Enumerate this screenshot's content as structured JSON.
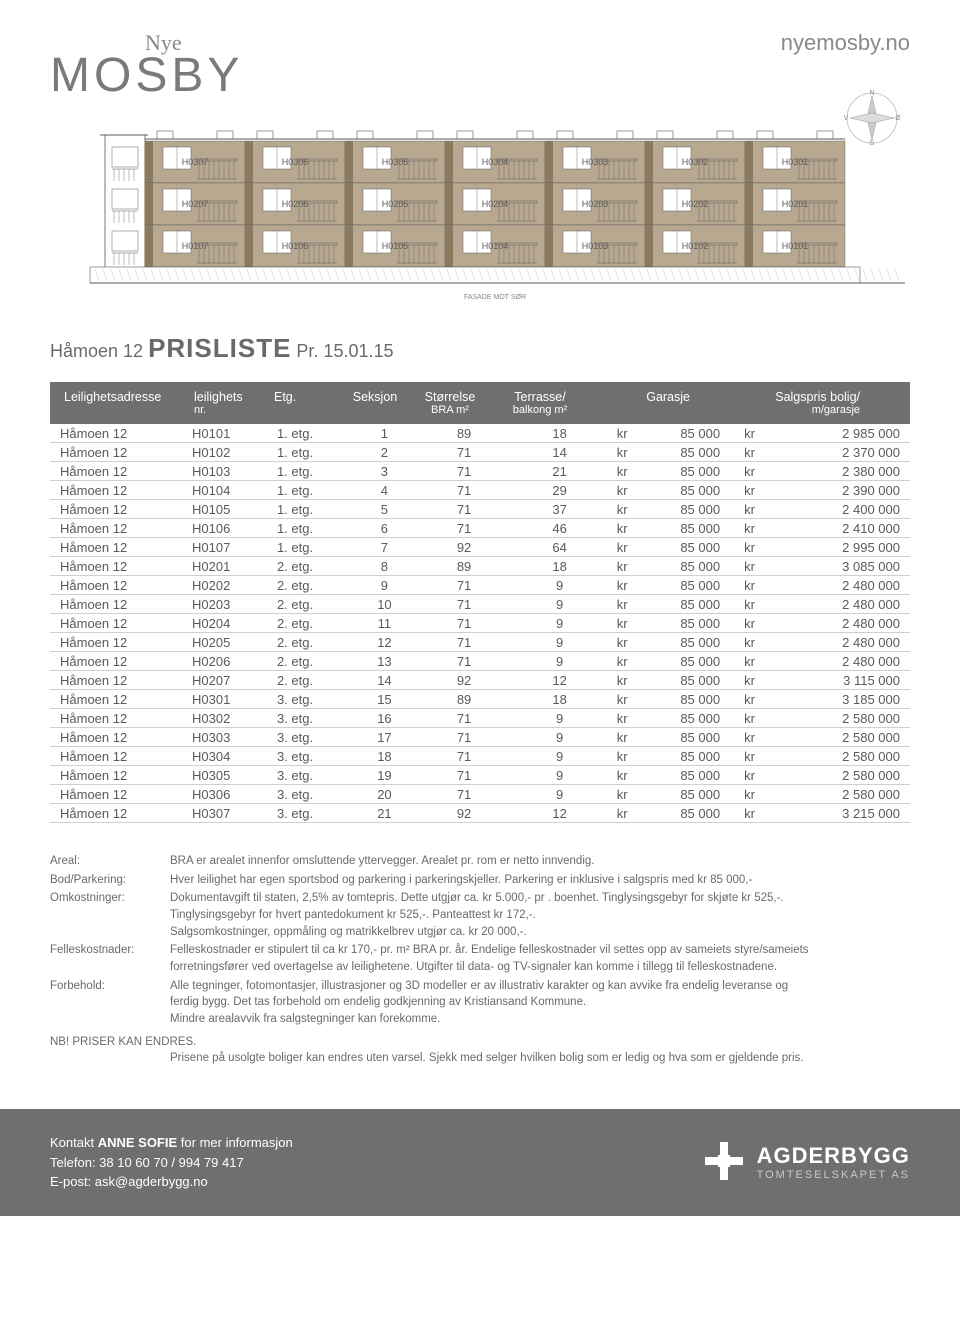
{
  "header": {
    "logo_script": "Nye",
    "logo_name": "MOSBY",
    "url": "nyemosby.no"
  },
  "building": {
    "floors": [
      [
        "H0307",
        "H0306",
        "H0305",
        "H0304",
        "H0303",
        "H0302",
        "H0301"
      ],
      [
        "H0207",
        "H0206",
        "H0205",
        "H0204",
        "H0203",
        "H0202",
        "H0201"
      ],
      [
        "H0107",
        "H0106",
        "H0105",
        "H0104",
        "H0103",
        "H0102",
        "H0101"
      ]
    ],
    "caption": "FASADE MOT SØR",
    "colors": {
      "wall": "#b8a890",
      "wall_dark": "#8a7a60",
      "line": "#5a5a5a",
      "label": "#5a5a5a"
    }
  },
  "title": {
    "pre": "Håmoen 12 ",
    "big": "PRISLISTE",
    "post": " Pr. 15.01.15"
  },
  "table": {
    "header_bg": "#6e6f71",
    "header_fg": "#ffffff",
    "row_border": "#d0d0d0",
    "text_color": "#5a5a5a",
    "columns": {
      "addr": "Leilighetsadresse",
      "unit1": "leilighets",
      "unit2": "nr.",
      "etg": "Etg.",
      "seksjon": "Seksjon",
      "bra1": "Størrelse",
      "bra2": "BRA m²",
      "terr1": "Terrasse/",
      "terr2": "balkong m²",
      "gar": "Garasje",
      "price1": "Salgspris bolig/",
      "price2": "m/garasje"
    },
    "rows": [
      {
        "addr": "Håmoen 12",
        "unit": "H0101",
        "etg": "1. etg.",
        "seksjon": "1",
        "bra": "89",
        "terr": "18",
        "gar": "85 000",
        "price": "2 985 000"
      },
      {
        "addr": "Håmoen 12",
        "unit": "H0102",
        "etg": "1. etg.",
        "seksjon": "2",
        "bra": "71",
        "terr": "14",
        "gar": "85 000",
        "price": "2 370 000"
      },
      {
        "addr": "Håmoen 12",
        "unit": "H0103",
        "etg": "1. etg.",
        "seksjon": "3",
        "bra": "71",
        "terr": "21",
        "gar": "85 000",
        "price": "2 380 000"
      },
      {
        "addr": "Håmoen 12",
        "unit": "H0104",
        "etg": "1. etg.",
        "seksjon": "4",
        "bra": "71",
        "terr": "29",
        "gar": "85 000",
        "price": "2 390 000"
      },
      {
        "addr": "Håmoen 12",
        "unit": "H0105",
        "etg": "1. etg.",
        "seksjon": "5",
        "bra": "71",
        "terr": "37",
        "gar": "85 000",
        "price": "2 400 000"
      },
      {
        "addr": "Håmoen 12",
        "unit": "H0106",
        "etg": "1. etg.",
        "seksjon": "6",
        "bra": "71",
        "terr": "46",
        "gar": "85 000",
        "price": "2 410 000"
      },
      {
        "addr": "Håmoen 12",
        "unit": "H0107",
        "etg": "1. etg.",
        "seksjon": "7",
        "bra": "92",
        "terr": "64",
        "gar": "85 000",
        "price": "2 995 000"
      },
      {
        "addr": "Håmoen 12",
        "unit": "H0201",
        "etg": "2. etg.",
        "seksjon": "8",
        "bra": "89",
        "terr": "18",
        "gar": "85 000",
        "price": "3 085 000"
      },
      {
        "addr": "Håmoen 12",
        "unit": "H0202",
        "etg": "2. etg.",
        "seksjon": "9",
        "bra": "71",
        "terr": "9",
        "gar": "85 000",
        "price": "2 480 000"
      },
      {
        "addr": "Håmoen 12",
        "unit": "H0203",
        "etg": "2. etg.",
        "seksjon": "10",
        "bra": "71",
        "terr": "9",
        "gar": "85 000",
        "price": "2 480 000"
      },
      {
        "addr": "Håmoen 12",
        "unit": "H0204",
        "etg": "2. etg.",
        "seksjon": "11",
        "bra": "71",
        "terr": "9",
        "gar": "85 000",
        "price": "2 480 000"
      },
      {
        "addr": "Håmoen 12",
        "unit": "H0205",
        "etg": "2. etg.",
        "seksjon": "12",
        "bra": "71",
        "terr": "9",
        "gar": "85 000",
        "price": "2 480 000"
      },
      {
        "addr": "Håmoen 12",
        "unit": "H0206",
        "etg": "2. etg.",
        "seksjon": "13",
        "bra": "71",
        "terr": "9",
        "gar": "85 000",
        "price": "2 480 000"
      },
      {
        "addr": "Håmoen 12",
        "unit": "H0207",
        "etg": "2. etg.",
        "seksjon": "14",
        "bra": "92",
        "terr": "12",
        "gar": "85 000",
        "price": "3 115 000"
      },
      {
        "addr": "Håmoen 12",
        "unit": "H0301",
        "etg": "3. etg.",
        "seksjon": "15",
        "bra": "89",
        "terr": "18",
        "gar": "85 000",
        "price": "3 185 000"
      },
      {
        "addr": "Håmoen 12",
        "unit": "H0302",
        "etg": "3. etg.",
        "seksjon": "16",
        "bra": "71",
        "terr": "9",
        "gar": "85 000",
        "price": "2 580 000"
      },
      {
        "addr": "Håmoen 12",
        "unit": "H0303",
        "etg": "3. etg.",
        "seksjon": "17",
        "bra": "71",
        "terr": "9",
        "gar": "85 000",
        "price": "2 580 000"
      },
      {
        "addr": "Håmoen 12",
        "unit": "H0304",
        "etg": "3. etg.",
        "seksjon": "18",
        "bra": "71",
        "terr": "9",
        "gar": "85 000",
        "price": "2 580 000"
      },
      {
        "addr": "Håmoen 12",
        "unit": "H0305",
        "etg": "3. etg.",
        "seksjon": "19",
        "bra": "71",
        "terr": "9",
        "gar": "85 000",
        "price": "2 580 000"
      },
      {
        "addr": "Håmoen 12",
        "unit": "H0306",
        "etg": "3. etg.",
        "seksjon": "20",
        "bra": "71",
        "terr": "9",
        "gar": "85 000",
        "price": "2 580 000"
      },
      {
        "addr": "Håmoen 12",
        "unit": "H0307",
        "etg": "3. etg.",
        "seksjon": "21",
        "bra": "92",
        "terr": "12",
        "gar": "85 000",
        "price": "3 215 000"
      }
    ],
    "kr_label": "kr"
  },
  "notes": {
    "areal_label": "Areal:",
    "areal_text": "BRA er arealet innenfor omsluttende yttervegger. Arealet pr. rom er netto innvendig.",
    "bod_label": "Bod/Parkering:",
    "bod_text": "Hver leilighet har egen sportsbod og parkering i parkeringskjeller. Parkering er inklusive i salgspris med kr 85 000,-",
    "omk_label": "Omkostninger:",
    "omk_text1": "Dokumentavgift til staten, 2,5% av tomtepris. Dette utgjør ca. kr 5.000,- pr . boenhet. Tinglysingsgebyr for skjøte kr 525,-.",
    "omk_text2": "Tinglysingsgebyr for hvert pantedokument kr 525,-. Panteattest kr 172,-.",
    "omk_text3": "Salgsomkostninger, oppmåling og matrikkelbrev utgjør ca. kr 20 000,-.",
    "fel_label": "Felleskostnader:",
    "fel_text1": "Felleskostnader er stipulert til ca kr 170,- pr. m² BRA pr. år. Endelige felleskostnader vil settes opp av sameiets styre/sameiets",
    "fel_text2": "forretningsfører ved overtagelse av leilighetene. Utgifter til data- og TV-signaler kan komme i tillegg til felleskostnadene.",
    "for_label": "Forbehold:",
    "for_text1": "Alle tegninger, fotomontasjer, illustrasjoner og 3D modeller er av illustrativ karakter og kan avvike fra endelig leveranse og",
    "for_text2": "ferdig bygg. Det tas forbehold om endelig godkjenning av Kristiansand Kommune.",
    "for_text3": "Mindre arealavvik fra salgstegninger kan forekomme.",
    "nb": "NB! PRISER KAN ENDRES.",
    "nb_text": "Prisene på usolgte boliger kan endres uten varsel. Sjekk med selger hvilken bolig som er ledig og hva som er gjeldende pris."
  },
  "footer": {
    "bg": "#6e6f71",
    "fg": "#ffffff",
    "line1_pre": "Kontakt ",
    "line1_name": "ANNE SOFIE",
    "line1_post": " for mer informasjon",
    "line2": "Telefon: 38 10 60 70 / 994 79 417",
    "line3": "E-post: ask@agderbygg.no",
    "company": "AGDERBYGG",
    "company_sub": "TOMTESELSKAPET AS"
  }
}
